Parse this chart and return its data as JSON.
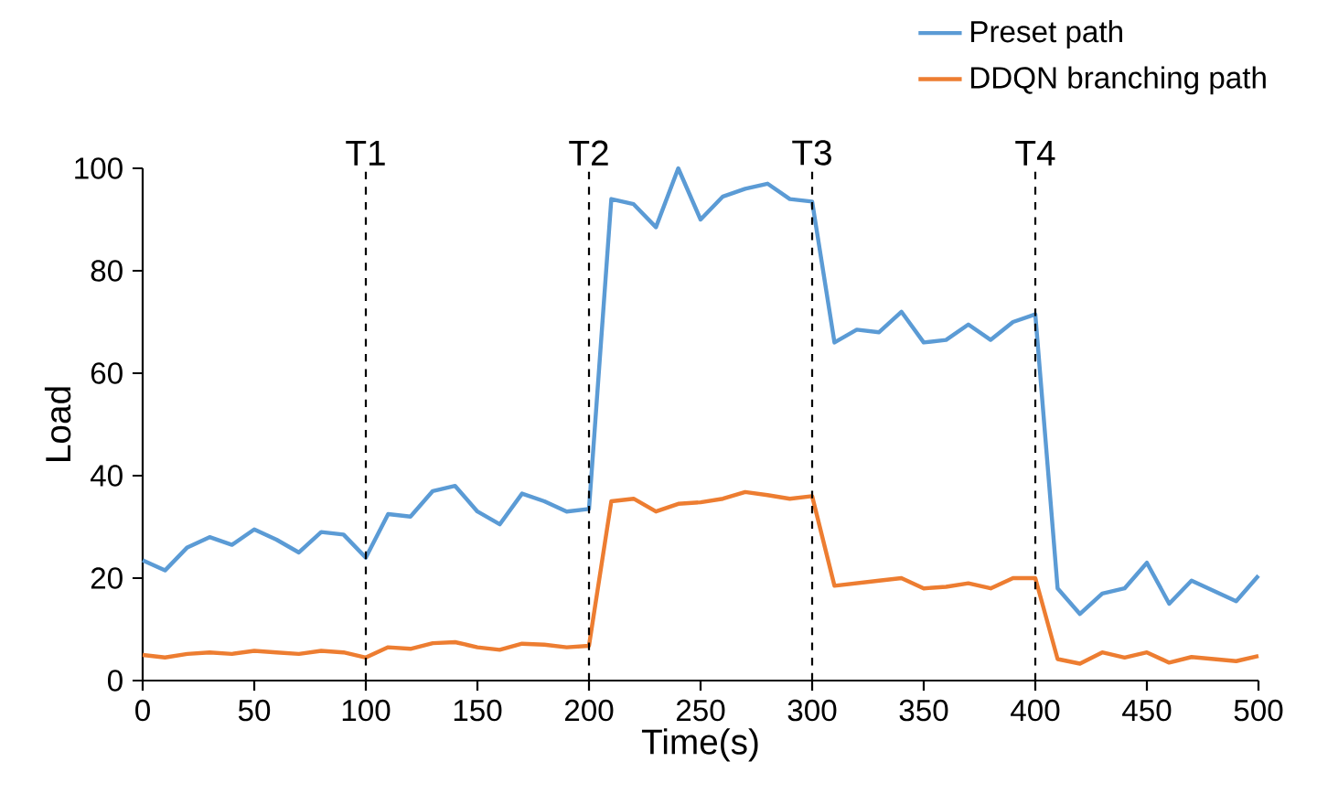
{
  "chart_data": {
    "type": "line",
    "xlabel": "Time(s)",
    "ylabel": "Load",
    "x": [
      0,
      10,
      20,
      30,
      40,
      50,
      60,
      70,
      80,
      90,
      100,
      110,
      120,
      130,
      140,
      150,
      160,
      170,
      180,
      190,
      200,
      210,
      220,
      230,
      240,
      250,
      260,
      270,
      280,
      290,
      300,
      310,
      320,
      330,
      340,
      350,
      360,
      370,
      380,
      390,
      400,
      410,
      420,
      430,
      440,
      450,
      460,
      470,
      480,
      490,
      500
    ],
    "series": [
      {
        "name": "Preset path",
        "color": "#5b9bd5",
        "values": [
          23.5,
          21.5,
          26,
          28,
          26.5,
          29.5,
          27.5,
          25,
          29,
          28.5,
          24,
          32.5,
          32,
          37,
          38,
          33,
          30.5,
          36.5,
          35,
          33,
          33.5,
          94,
          93,
          88.5,
          100,
          90,
          94.5,
          96,
          97,
          94,
          93.5,
          66,
          68.5,
          68,
          72,
          66,
          66.5,
          69.5,
          66.5,
          70,
          71.5,
          18,
          13,
          17,
          18,
          23,
          15,
          19.5,
          17.5,
          15.5,
          20.5
        ]
      },
      {
        "name": "DDQN branching path",
        "color": "#ed7d31",
        "values": [
          5,
          4.5,
          5.2,
          5.5,
          5.2,
          5.8,
          5.5,
          5.2,
          5.8,
          5.5,
          4.5,
          6.5,
          6.2,
          7.3,
          7.5,
          6.5,
          6,
          7.2,
          7,
          6.5,
          6.8,
          35,
          35.5,
          33,
          34.5,
          34.8,
          35.5,
          36.8,
          36.2,
          35.5,
          36,
          18.5,
          19,
          19.5,
          20,
          18,
          18.3,
          19,
          18,
          20,
          20,
          4.2,
          3.3,
          5.5,
          4.5,
          5.5,
          3.5,
          4.6,
          4.2,
          3.8,
          4.8
        ]
      }
    ],
    "xlim": [
      0,
      500
    ],
    "xticks": [
      0,
      50,
      100,
      150,
      200,
      250,
      300,
      350,
      400,
      450,
      500
    ],
    "ylim": [
      0,
      100
    ],
    "yticks": [
      0,
      20,
      40,
      60,
      80,
      100
    ],
    "ref_lines": [
      {
        "axis": "x",
        "value": 100,
        "label": "T1",
        "color": "#000000",
        "line_style": "dashed"
      },
      {
        "axis": "x",
        "value": 200,
        "label": "T2",
        "color": "#000000",
        "line_style": "dashed"
      },
      {
        "axis": "x",
        "value": 300,
        "label": "T3",
        "color": "#000000",
        "line_style": "dashed"
      },
      {
        "axis": "x",
        "value": 400,
        "label": "T4",
        "color": "#000000",
        "line_style": "dashed"
      }
    ],
    "legend": "top right",
    "grid": false,
    "marker": "none",
    "line_style": "solid"
  }
}
